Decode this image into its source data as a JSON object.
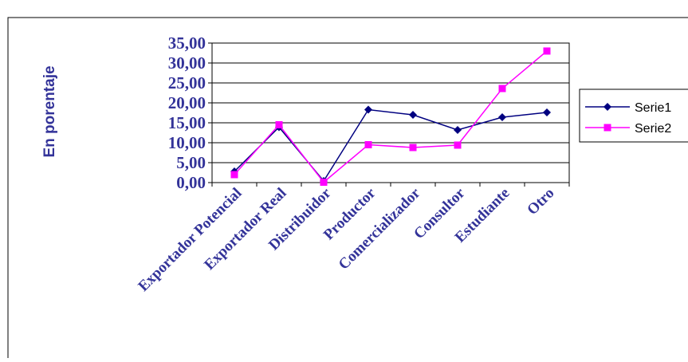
{
  "chart_data": {
    "type": "line",
    "title": "",
    "xlabel": "",
    "ylabel": "En porentaje",
    "ylim": [
      0,
      35
    ],
    "y_ticks": [
      "0,00",
      "5,00",
      "10,00",
      "15,00",
      "20,00",
      "25,00",
      "30,00",
      "35,00"
    ],
    "grid": "horizontal",
    "legend": "right",
    "categories": [
      "Exportador Potencial",
      "Exportador Real",
      "Distribuidor",
      "Productor",
      "Comercializador",
      "Consultor",
      "Estudiante",
      "Otro"
    ],
    "series": [
      {
        "name": "Serie1",
        "color": "#000080",
        "marker": "diamond",
        "values": [
          2.8,
          13.9,
          0.4,
          18.3,
          17.0,
          13.2,
          16.4,
          17.6
        ]
      },
      {
        "name": "Serie2",
        "color": "#FF00FF",
        "marker": "square",
        "values": [
          2.0,
          14.5,
          0.1,
          9.5,
          8.8,
          9.4,
          23.6,
          33.0
        ]
      }
    ]
  }
}
